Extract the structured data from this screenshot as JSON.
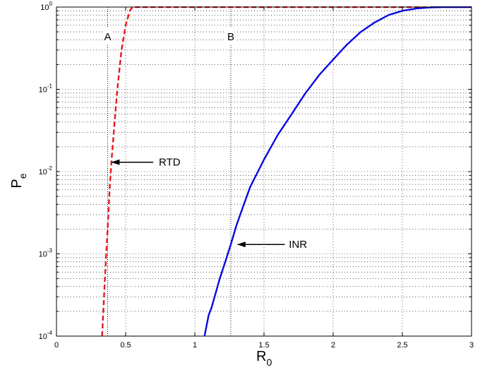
{
  "chart_data": {
    "type": "line",
    "title": "",
    "xlabel": "R",
    "xlabel_subscript": "0",
    "ylabel": "P",
    "ylabel_subscript": "e",
    "xlim": [
      0,
      3
    ],
    "ylim": [
      0.0001,
      1
    ],
    "yscale": "log",
    "grid": true,
    "x_ticks": [
      {
        "value": 0,
        "label": "0"
      },
      {
        "value": 0.5,
        "label": "0.5"
      },
      {
        "value": 1,
        "label": "1"
      },
      {
        "value": 1.5,
        "label": "1.5"
      },
      {
        "value": 2,
        "label": "2"
      },
      {
        "value": 2.5,
        "label": "2.5"
      },
      {
        "value": 3,
        "label": "3"
      }
    ],
    "y_ticks": [
      {
        "value": 0.0001,
        "base": "10",
        "exp": "-4"
      },
      {
        "value": 0.001,
        "base": "10",
        "exp": "-3"
      },
      {
        "value": 0.01,
        "base": "10",
        "exp": "-2"
      },
      {
        "value": 0.1,
        "base": "10",
        "exp": "-1"
      },
      {
        "value": 1,
        "base": "10",
        "exp": "0"
      }
    ],
    "series": [
      {
        "name": "RTD",
        "color": "#e8161c",
        "dash": "dashed",
        "x": [
          0.33,
          0.35,
          0.37,
          0.385,
          0.4,
          0.42,
          0.44,
          0.47,
          0.5,
          0.53,
          0.55,
          0.6,
          1.0,
          2.0,
          3.0
        ],
        "y": [
          0.0001,
          0.0005,
          0.002,
          0.0065,
          0.015,
          0.04,
          0.1,
          0.3,
          0.6,
          0.9,
          1.0,
          1.0,
          1.0,
          1.0,
          1.0
        ]
      },
      {
        "name": "INR",
        "color": "#0a0ae0",
        "dash": "solid",
        "x": [
          1.07,
          1.1,
          1.12,
          1.15,
          1.18,
          1.22,
          1.26,
          1.3,
          1.35,
          1.4,
          1.5,
          1.6,
          1.7,
          1.8,
          1.9,
          2.0,
          2.1,
          2.2,
          2.3,
          2.4,
          2.5,
          2.6,
          2.7,
          2.8,
          3.0
        ],
        "y": [
          0.0001,
          0.00018,
          0.00022,
          0.00033,
          0.0005,
          0.0008,
          0.0013,
          0.0022,
          0.0038,
          0.0065,
          0.014,
          0.028,
          0.05,
          0.09,
          0.15,
          0.23,
          0.35,
          0.5,
          0.65,
          0.8,
          0.9,
          0.96,
          0.99,
          1.0,
          1.0
        ]
      }
    ],
    "reference_lines": [
      {
        "label": "A",
        "x": 0.37
      },
      {
        "label": "B",
        "x": 1.26
      }
    ],
    "annotations": [
      {
        "text": "RTD",
        "text_x": 0.74,
        "text_y": 0.013,
        "arrow_from_x": 0.7,
        "arrow_to_x": 0.4,
        "arrow_y": 0.013
      },
      {
        "text": "INR",
        "text_x": 1.68,
        "text_y": 0.0013,
        "arrow_from_x": 1.65,
        "arrow_to_x": 1.31,
        "arrow_y": 0.0013
      }
    ]
  }
}
